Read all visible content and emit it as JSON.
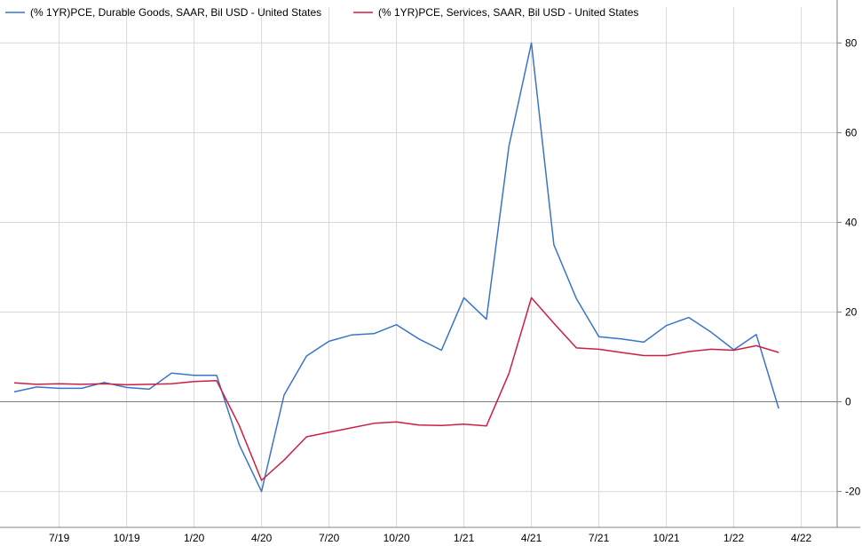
{
  "chart_data": {
    "type": "line",
    "grid": true,
    "legend_placement": "top-left",
    "y_axis_side": "right",
    "ylim": [
      -28,
      88
    ],
    "yticks": [
      -20,
      0,
      20,
      40,
      60,
      80
    ],
    "xticks": [
      "7/19",
      "10/19",
      "1/20",
      "4/20",
      "7/20",
      "10/20",
      "1/21",
      "4/21",
      "7/21",
      "10/21",
      "1/22",
      "4/22"
    ],
    "x": [
      "5/19",
      "6/19",
      "7/19",
      "8/19",
      "9/19",
      "10/19",
      "11/19",
      "12/19",
      "1/20",
      "2/20",
      "3/20",
      "4/20",
      "5/20",
      "6/20",
      "7/20",
      "8/20",
      "9/20",
      "10/20",
      "11/20",
      "12/20",
      "1/21",
      "2/21",
      "3/21",
      "4/21",
      "5/21",
      "6/21",
      "7/21",
      "8/21",
      "9/21",
      "10/21",
      "11/21",
      "12/21",
      "1/22",
      "2/22",
      "3/22"
    ],
    "series": [
      {
        "name": "(% 1YR)PCE, Durable Goods, SAAR, Bil USD - United States",
        "color": "#3a74c8",
        "values": [
          2.2,
          3.3,
          3.0,
          3.0,
          4.3,
          3.2,
          2.8,
          6.4,
          5.9,
          5.9,
          -9.5,
          -20.0,
          1.5,
          10.2,
          13.5,
          14.9,
          15.2,
          17.2,
          14.0,
          11.5,
          23.2,
          18.4,
          57.0,
          80.0,
          35.0,
          23.0,
          14.5,
          14.0,
          13.3,
          17.0,
          18.8,
          15.5,
          11.6,
          15.0,
          -1.5
        ]
      },
      {
        "name": "(% 1YR)PCE, Services, SAAR, Bil USD - United States",
        "color": "#cc1f44",
        "values": [
          4.2,
          3.9,
          4.0,
          3.9,
          4.0,
          3.8,
          3.9,
          4.0,
          4.5,
          4.7,
          -5.2,
          -17.5,
          -13.0,
          -7.8,
          -6.8,
          -5.8,
          -4.8,
          -4.5,
          -5.2,
          -5.3,
          -5.0,
          -5.4,
          6.3,
          23.2,
          17.5,
          12.0,
          11.7,
          11.0,
          10.3,
          10.3,
          11.2,
          11.7,
          11.5,
          12.5,
          11.0
        ]
      }
    ]
  }
}
